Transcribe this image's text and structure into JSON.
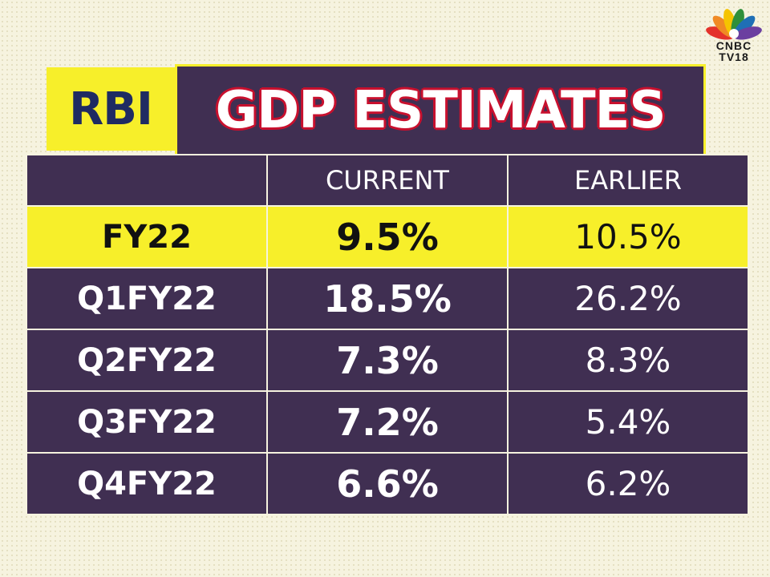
{
  "logo": {
    "line1": "CNBC",
    "line2": "TV18"
  },
  "banner": {
    "prefix": "RBI",
    "title": "GDP ESTIMATES"
  },
  "colors": {
    "purple": "#402f52",
    "yellow": "#f7ef2a",
    "navy": "#1f2b62",
    "red_outline": "#c8102e"
  },
  "chart_data": {
    "type": "table",
    "title": "RBI GDP ESTIMATES",
    "columns": [
      "",
      "CURRENT",
      "EARLIER"
    ],
    "rows": [
      {
        "label": "FY22",
        "current": "9.5%",
        "earlier": "10.5%",
        "highlight": true
      },
      {
        "label": "Q1FY22",
        "current": "18.5%",
        "earlier": "26.2%"
      },
      {
        "label": "Q2FY22",
        "current": "7.3%",
        "earlier": "8.3%"
      },
      {
        "label": "Q3FY22",
        "current": "7.2%",
        "earlier": "5.4%"
      },
      {
        "label": "Q4FY22",
        "current": "6.6%",
        "earlier": "6.2%"
      }
    ],
    "series": [
      {
        "name": "CURRENT",
        "values": [
          9.5,
          18.5,
          7.3,
          7.2,
          6.6
        ]
      },
      {
        "name": "EARLIER",
        "values": [
          10.5,
          26.2,
          8.3,
          5.4,
          6.2
        ]
      }
    ]
  }
}
